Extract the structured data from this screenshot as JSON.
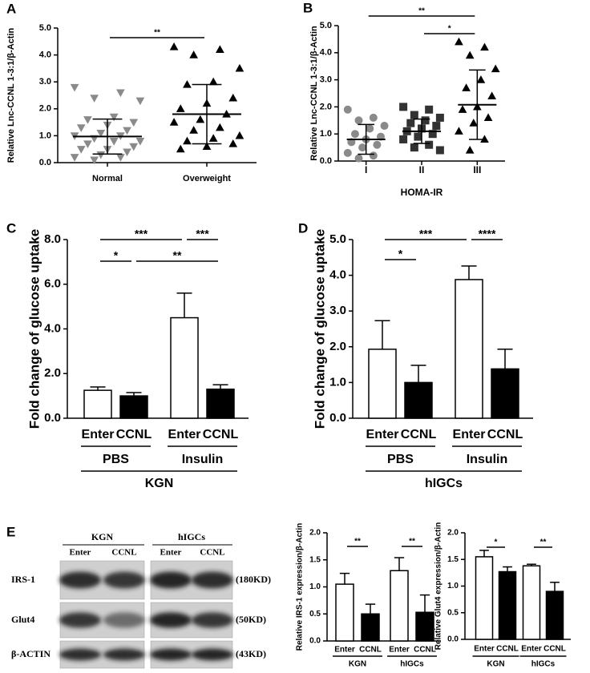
{
  "chart_data": [
    {
      "type": "dotplot",
      "panel_label": "A",
      "y_label": "Relative Lnc-CCNL 1-3:1/β-Actin",
      "categories": [
        "Normal",
        "Overweight"
      ],
      "groups": [
        {
          "color": "#8a8a8a",
          "marker": "triangle-down",
          "values": [
            2.8,
            2.6,
            2.4,
            2.3,
            1.7,
            1.6,
            1.5,
            1.4,
            1.3,
            1.2,
            1.1,
            1.0,
            1.0,
            0.9,
            0.8,
            0.8,
            0.7,
            0.6,
            0.5,
            0.5,
            0.4,
            0.3,
            0.2,
            0.2,
            0.1
          ],
          "mean": 0.97,
          "sd": 0.65
        },
        {
          "color": "#000000",
          "marker": "triangle-up",
          "values": [
            4.3,
            4.2,
            4.0,
            3.5,
            3.0,
            2.9,
            2.4,
            2.2,
            2.0,
            1.8,
            1.6,
            1.5,
            1.3,
            1.2,
            1.0,
            0.9,
            0.8,
            0.7,
            0.6,
            0.5
          ],
          "mean": 1.8,
          "sd": 1.1
        }
      ],
      "ylim": [
        0,
        5
      ],
      "yticks": [
        {
          "value": 0,
          "label": "0.0"
        },
        {
          "value": 1,
          "label": "1.0"
        },
        {
          "value": 2,
          "label": "2.0"
        },
        {
          "value": 3,
          "label": "3.0"
        },
        {
          "value": 4,
          "label": "4.0"
        },
        {
          "value": 5,
          "label": "5.0"
        }
      ],
      "annotations": [
        {
          "text": "**",
          "from": 0,
          "to": 1
        }
      ]
    },
    {
      "type": "dotplot",
      "panel_label": "B",
      "y_label": "Relative Lnc-CCNL 1-3:1/β-Actin",
      "x_label": "HOMA-IR",
      "categories": [
        "I",
        "II",
        "III"
      ],
      "groups": [
        {
          "color": "#8a8a8a",
          "marker": "circle",
          "values": [
            1.9,
            1.6,
            1.5,
            1.3,
            1.2,
            1.0,
            0.9,
            0.8,
            0.7,
            0.6,
            0.5,
            0.3,
            0.2,
            0.1
          ],
          "mean": 0.8,
          "sd": 0.55
        },
        {
          "color": "#333333",
          "marker": "square",
          "values": [
            2.0,
            1.9,
            1.7,
            1.6,
            1.5,
            1.4,
            1.3,
            1.2,
            1.1,
            1.0,
            0.9,
            0.8,
            0.6,
            0.5,
            0.4
          ],
          "mean": 1.1,
          "sd": 0.45
        },
        {
          "color": "#000000",
          "marker": "triangle-up",
          "values": [
            4.4,
            4.2,
            3.9,
            3.4,
            3.0,
            2.7,
            2.4,
            2.0,
            1.9,
            1.6,
            1.4,
            1.1,
            0.8,
            0.4
          ],
          "mean": 2.08,
          "sd": 1.28
        }
      ],
      "ylim": [
        0,
        5
      ],
      "yticks": [
        {
          "value": 0,
          "label": "0.0"
        },
        {
          "value": 1,
          "label": "1.0"
        },
        {
          "value": 2,
          "label": "2.0"
        },
        {
          "value": 3,
          "label": "3.0"
        },
        {
          "value": 4,
          "label": "4.0"
        },
        {
          "value": 5,
          "label": "5.0"
        }
      ],
      "annotations": [
        {
          "text": "**",
          "from": 0,
          "to": 2
        },
        {
          "text": "*",
          "from": 1,
          "to": 2
        }
      ]
    },
    {
      "type": "bar",
      "panel_label": "C",
      "y_label": "Fold change of  glucose uptake",
      "categories": [
        "Enter",
        "CCNL",
        "Enter",
        "CCNL"
      ],
      "values": [
        1.25,
        1.0,
        4.5,
        1.3
      ],
      "errors": [
        0.15,
        0.15,
        1.1,
        0.2
      ],
      "colors": [
        "#ffffff",
        "#000000",
        "#ffffff",
        "#000000"
      ],
      "groups": [
        {
          "label": "PBS",
          "span": [
            0,
            1
          ]
        },
        {
          "label": "Insulin",
          "span": [
            2,
            3
          ]
        }
      ],
      "group_title": "KGN",
      "ylim": [
        0,
        8
      ],
      "yticks": [
        {
          "value": 0,
          "label": "0.0"
        },
        {
          "value": 2,
          "label": "2.0"
        },
        {
          "value": 4,
          "label": "4.0"
        },
        {
          "value": 6,
          "label": "6.0"
        },
        {
          "value": 8,
          "label": "8.0"
        }
      ],
      "annotations": [
        {
          "text": "***",
          "from": 0,
          "to": 2
        },
        {
          "text": "***",
          "from": 2,
          "to": 3
        },
        {
          "text": "*",
          "from": 0,
          "to": 1
        },
        {
          "text": "**",
          "from": 1,
          "to": 3
        }
      ]
    },
    {
      "type": "bar",
      "panel_label": "D",
      "y_label": "Fold change of  glucose uptake",
      "categories": [
        "Enter",
        "CCNL",
        "Enter",
        "CCNL"
      ],
      "values": [
        1.93,
        1.0,
        3.88,
        1.38
      ],
      "errors": [
        0.8,
        0.48,
        0.38,
        0.55
      ],
      "colors": [
        "#ffffff",
        "#000000",
        "#ffffff",
        "#000000"
      ],
      "groups": [
        {
          "label": "PBS",
          "span": [
            0,
            1
          ]
        },
        {
          "label": "Insulin",
          "span": [
            2,
            3
          ]
        }
      ],
      "group_title": "hIGCs",
      "ylim": [
        0,
        5
      ],
      "yticks": [
        {
          "value": 0,
          "label": "0.0"
        },
        {
          "value": 1,
          "label": "1.0"
        },
        {
          "value": 2,
          "label": "2.0"
        },
        {
          "value": 3,
          "label": "3.0"
        },
        {
          "value": 4,
          "label": "4.0"
        },
        {
          "value": 5,
          "label": "5.0"
        }
      ],
      "annotations": [
        {
          "text": "***",
          "from": 0,
          "to": 2
        },
        {
          "text": "****",
          "from": 2,
          "to": 3
        },
        {
          "text": "*",
          "from": 0,
          "to": 1
        }
      ]
    },
    {
      "type": "bar",
      "y_label": "Relative IRS-1 expression/β-Actin",
      "categories": [
        "Enter",
        "CCNL",
        "Enter",
        "CCNL"
      ],
      "values": [
        1.05,
        0.5,
        1.3,
        0.53
      ],
      "errors": [
        0.2,
        0.18,
        0.24,
        0.32
      ],
      "colors": [
        "#ffffff",
        "#000000",
        "#ffffff",
        "#000000"
      ],
      "groups": [
        {
          "label": "KGN",
          "span": [
            0,
            1
          ]
        },
        {
          "label": "hIGCs",
          "span": [
            2,
            3
          ]
        }
      ],
      "ylim": [
        0,
        2
      ],
      "yticks": [
        {
          "value": 0,
          "label": "0.0"
        },
        {
          "value": 0.5,
          "label": "0.5"
        },
        {
          "value": 1,
          "label": "1.0"
        },
        {
          "value": 1.5,
          "label": "1.5"
        },
        {
          "value": 2,
          "label": "2.0"
        }
      ],
      "annotations": [
        {
          "text": "**",
          "from": 0,
          "to": 1
        },
        {
          "text": "**",
          "from": 2,
          "to": 3
        }
      ]
    },
    {
      "type": "bar",
      "y_label": "Relative Glut4 expression/β-Actin",
      "categories": [
        "Enter",
        "CCNL",
        "Enter",
        "CCNL"
      ],
      "values": [
        1.55,
        1.27,
        1.38,
        0.9
      ],
      "errors": [
        0.12,
        0.09,
        0.03,
        0.17
      ],
      "colors": [
        "#ffffff",
        "#000000",
        "#ffffff",
        "#000000"
      ],
      "groups": [
        {
          "label": "KGN",
          "span": [
            0,
            1
          ]
        },
        {
          "label": "hIGCs",
          "span": [
            2,
            3
          ]
        }
      ],
      "ylim": [
        0,
        2
      ],
      "yticks": [
        {
          "value": 0,
          "label": "0.0"
        },
        {
          "value": 0.5,
          "label": "0.5"
        },
        {
          "value": 1,
          "label": "1.0"
        },
        {
          "value": 1.5,
          "label": "1.5"
        },
        {
          "value": 2,
          "label": "2.0"
        }
      ],
      "annotations": [
        {
          "text": "*",
          "from": 0,
          "to": 1
        },
        {
          "text": "**",
          "from": 2,
          "to": 3
        }
      ]
    }
  ],
  "blot": {
    "panel_label": "E",
    "groups": [
      "KGN",
      "hIGCs"
    ],
    "lanes": [
      "Enter",
      "CCNL",
      "Enter",
      "CCNL"
    ],
    "rows": [
      {
        "label": "IRS-1",
        "size": "(180KD)"
      },
      {
        "label": "Glut4",
        "size": "(50KD)"
      },
      {
        "label": "β-ACTIN",
        "size": "(43KD)"
      }
    ]
  }
}
